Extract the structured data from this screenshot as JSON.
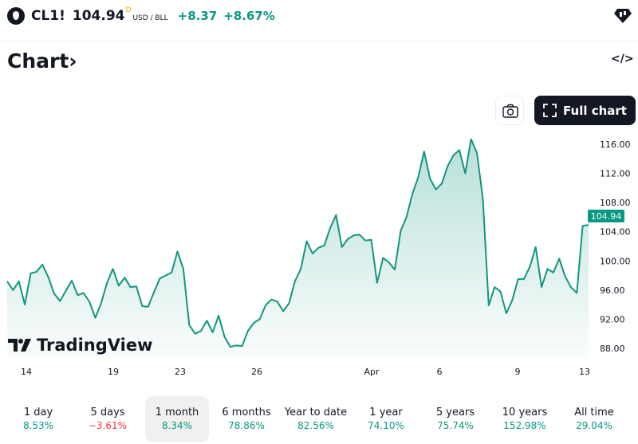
{
  "header": {
    "symbol": "CL1!",
    "price": "104.94",
    "price_flag": "D",
    "unit": "USD / BLL",
    "change": "+8.37",
    "change_percent": "+8.67%"
  },
  "section": {
    "title": "Chart",
    "chevron": "›",
    "embed_label": "</>"
  },
  "toolbar": {
    "snapshot_icon": "camera-icon",
    "full_chart_label": "Full chart"
  },
  "watermark": {
    "text": "TradingView"
  },
  "colors": {
    "up": "#089981",
    "down": "#f23645",
    "line": "#12967e",
    "button_bg": "#131722"
  },
  "chart_data": {
    "type": "area",
    "ylim": [
      86,
      118.5
    ],
    "y_ticks": [
      "116.00",
      "112.00",
      "108.00",
      "104.00",
      "100.00",
      "96.00",
      "92.00",
      "88.00"
    ],
    "x_ticks": [
      "14",
      "19",
      "23",
      "26",
      "Apr",
      "6",
      "9",
      "13"
    ],
    "last_value_label": "104.94",
    "values": [
      97.2,
      96.0,
      97.2,
      94.0,
      98.3,
      98.5,
      99.5,
      97.8,
      95.5,
      94.5,
      95.9,
      97.3,
      95.3,
      95.6,
      94.4,
      92.2,
      94.2,
      97.0,
      98.9,
      96.6,
      97.7,
      96.4,
      96.5,
      93.8,
      93.7,
      95.7,
      97.6,
      98.0,
      98.4,
      101.3,
      98.9,
      91.2,
      90.0,
      90.4,
      91.8,
      90.2,
      92.5,
      89.6,
      88.2,
      88.4,
      88.3,
      90.4,
      91.5,
      92.0,
      93.9,
      94.7,
      94.4,
      93.1,
      94.2,
      97.2,
      98.9,
      102.7,
      101.0,
      101.8,
      102.1,
      104.5,
      106.3,
      101.9,
      103.0,
      103.5,
      103.6,
      102.8,
      102.9,
      97.0,
      100.4,
      99.8,
      98.8,
      104.1,
      106.0,
      109.2,
      111.5,
      115.0,
      111.3,
      109.8,
      110.6,
      113.0,
      114.5,
      115.2,
      112.0,
      116.7,
      114.8,
      108.5,
      93.9,
      96.4,
      95.8,
      92.8,
      94.6,
      97.5,
      97.5,
      99.2,
      101.9,
      96.4,
      98.9,
      98.4,
      100.3,
      97.9,
      96.4,
      95.6,
      104.8,
      104.94
    ]
  },
  "periods": [
    {
      "label": "1 day",
      "value": "8.53%"
    },
    {
      "label": "5 days",
      "value": "−3.61%"
    },
    {
      "label": "1 month",
      "value": "8.34%"
    },
    {
      "label": "6 months",
      "value": "78.86%"
    },
    {
      "label": "Year to date",
      "value": "82.56%"
    },
    {
      "label": "1 year",
      "value": "74.10%"
    },
    {
      "label": "5 years",
      "value": "75.74%"
    },
    {
      "label": "10 years",
      "value": "152.98%"
    },
    {
      "label": "All time",
      "value": "29.04%"
    }
  ]
}
